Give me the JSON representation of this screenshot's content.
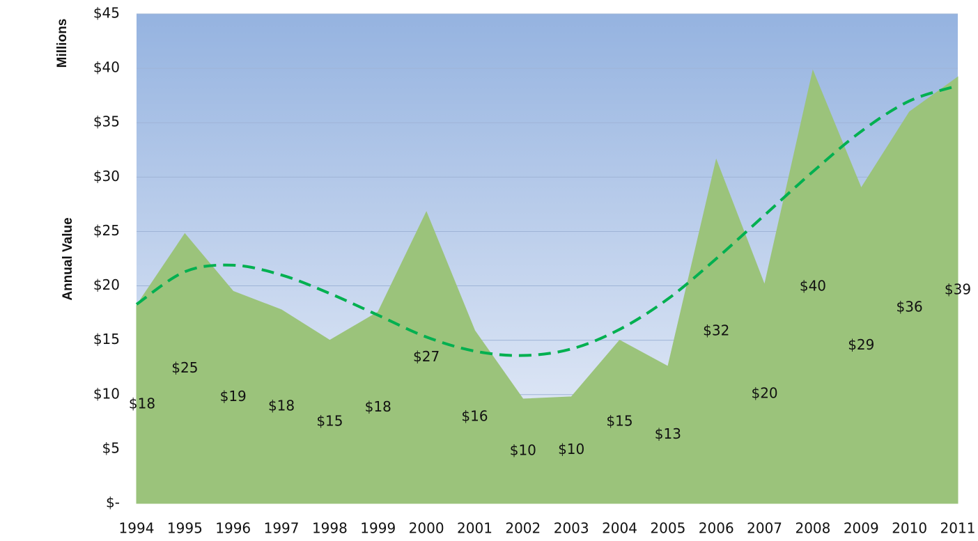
{
  "chart_data": {
    "type": "area",
    "y_label": "Annual Value",
    "y_unit_label": "Millions",
    "categories": [
      "1994",
      "1995",
      "1996",
      "1997",
      "1998",
      "1999",
      "2000",
      "2001",
      "2002",
      "2003",
      "2004",
      "2005",
      "2006",
      "2007",
      "2008",
      "2009",
      "2010",
      "2011"
    ],
    "values": [
      18.2,
      24.8,
      19.5,
      17.8,
      15.0,
      17.6,
      26.8,
      15.9,
      9.6,
      9.8,
      15.0,
      12.6,
      31.6,
      20.1,
      39.8,
      29.0,
      36.0,
      39.2
    ],
    "value_labels": [
      "$18",
      "$25",
      "$19",
      "$18",
      "$15",
      "$18",
      "$27",
      "$16",
      "$10",
      "$10",
      "$15",
      "$13",
      "$32",
      "$20",
      "$40",
      "$29",
      "$36",
      "$39"
    ],
    "color": "#9bc37b",
    "trendline": {
      "values": [
        18.3,
        21.3,
        21.9,
        21.0,
        19.3,
        17.3,
        15.3,
        14.0,
        13.6,
        14.2,
        16.0,
        18.8,
        22.5,
        26.5,
        30.5,
        34.2,
        37.0,
        38.4
      ],
      "color": "#00b050",
      "dashed": true
    },
    "ylim": [
      0,
      45
    ],
    "yticks": [
      {
        "value": 0,
        "label": "$-"
      },
      {
        "value": 5,
        "label": "$5"
      },
      {
        "value": 10,
        "label": "$10"
      },
      {
        "value": 15,
        "label": "$15"
      },
      {
        "value": 20,
        "label": "$20"
      },
      {
        "value": 25,
        "label": "$25"
      },
      {
        "value": 30,
        "label": "$30"
      },
      {
        "value": 35,
        "label": "$35"
      },
      {
        "value": 40,
        "label": "$40"
      },
      {
        "value": 45,
        "label": "$45"
      }
    ],
    "grid": true
  }
}
